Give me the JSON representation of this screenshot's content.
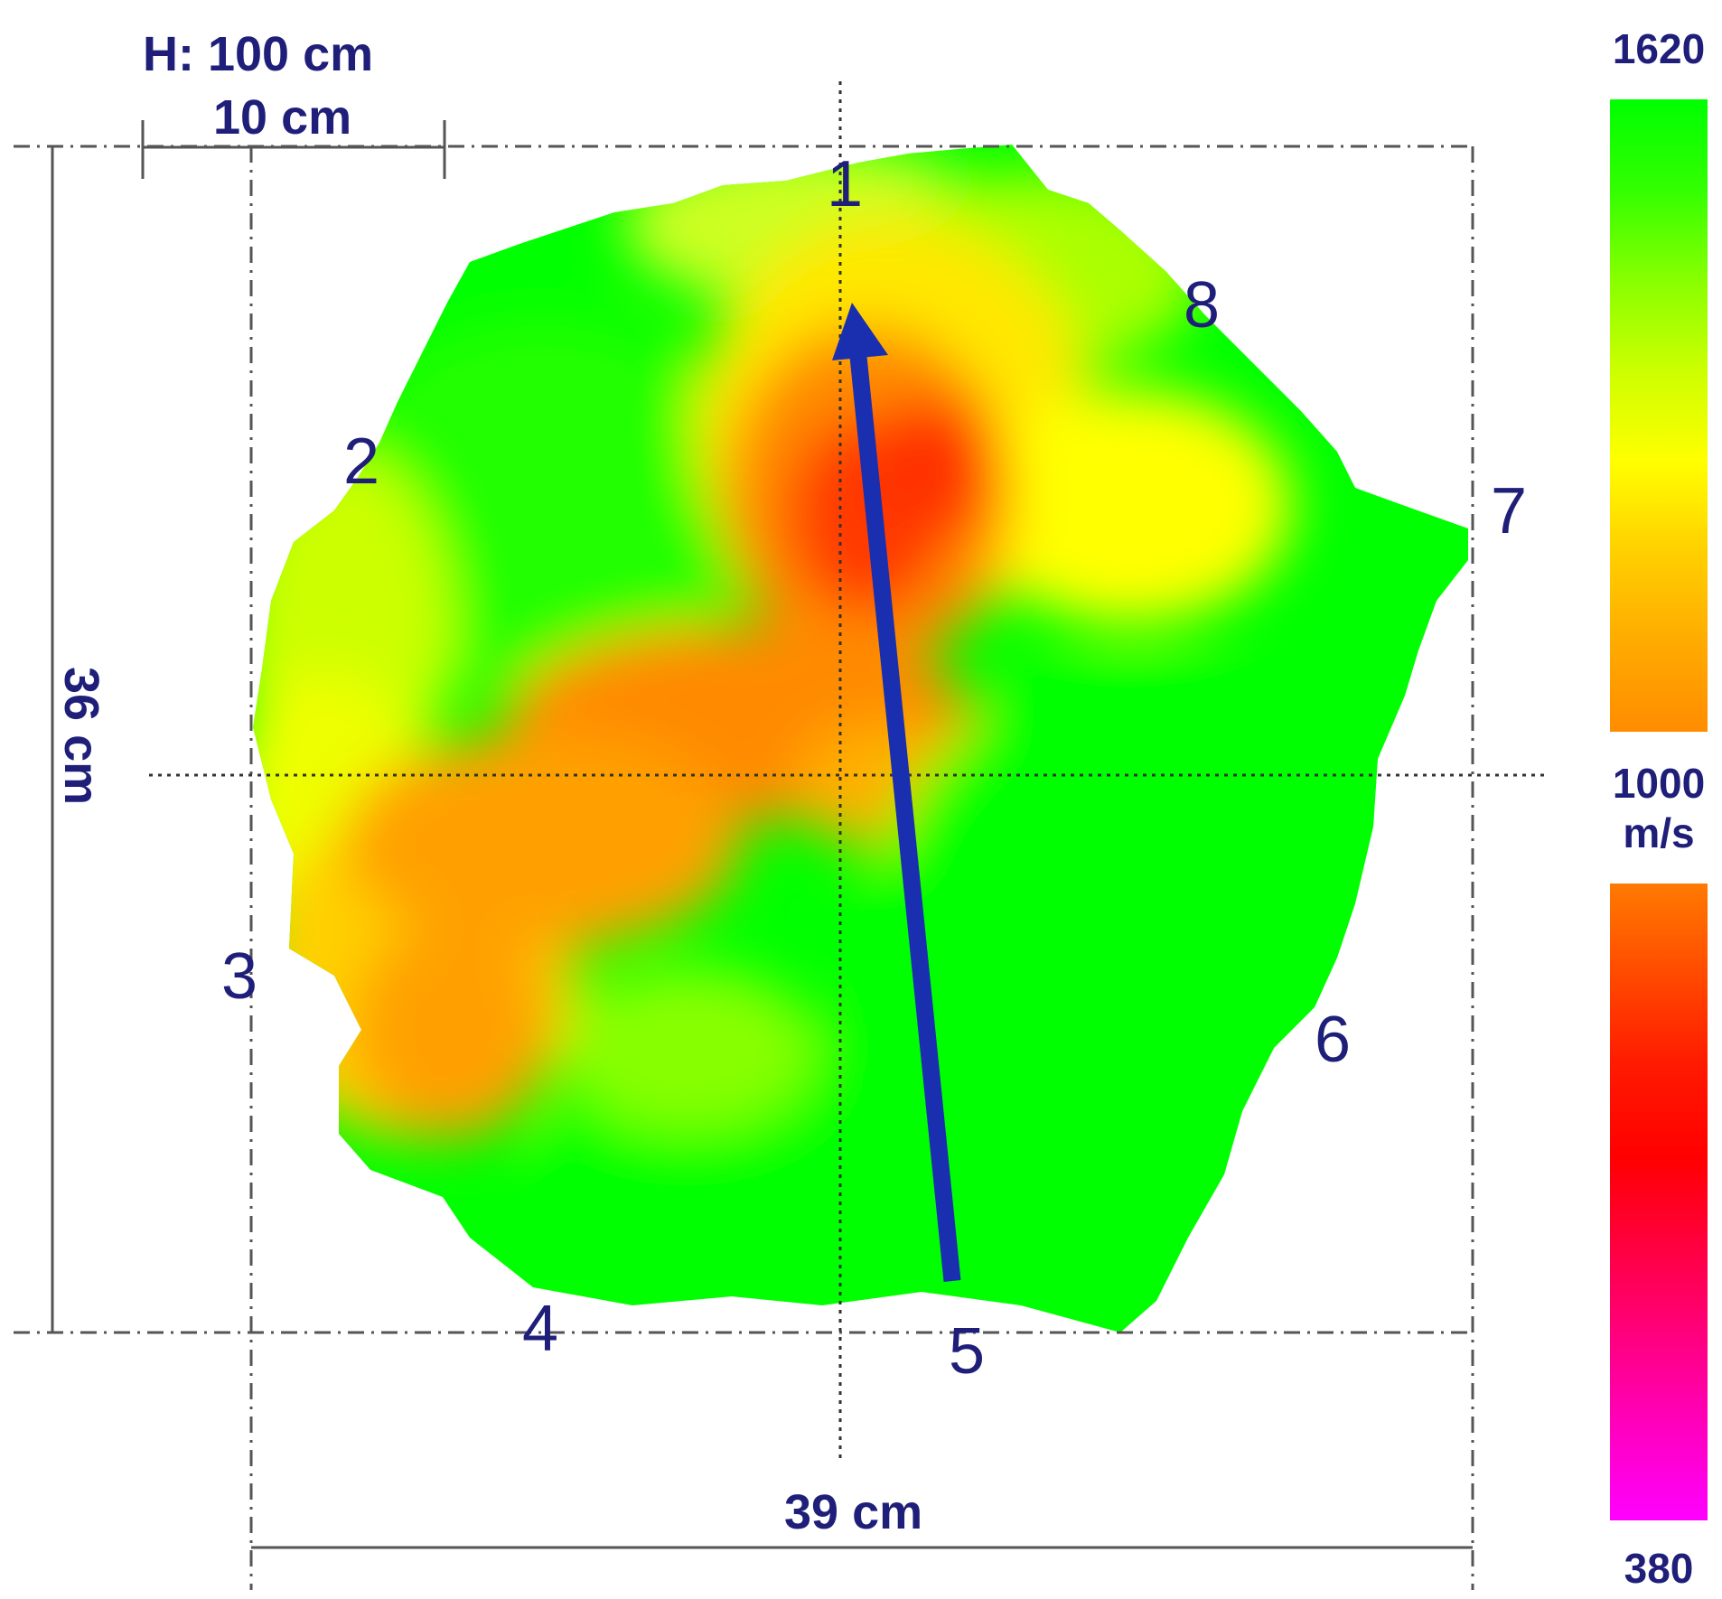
{
  "height_label": "H: 100 cm",
  "scale_bar_label": "10 cm",
  "width_label": "39 cm",
  "depth_label": "36 cm",
  "colorbar": {
    "max_label": "1620",
    "mid_label": "1000",
    "unit_label": "m/s",
    "min_label": "380",
    "max_value": 1620,
    "mid_value": 1000,
    "min_value": 380,
    "upper_stops": [
      "#00ff00",
      "#33ff00",
      "#88ff00",
      "#ccff00",
      "#ffff00",
      "#ffd000",
      "#ffab00",
      "#ff8c00"
    ],
    "lower_stops": [
      "#ff7a00",
      "#ff4a00",
      "#ff1a00",
      "#ff0000",
      "#ff0040",
      "#ff0080",
      "#ff00c0",
      "#ff00ff"
    ]
  },
  "sensors": [
    {
      "label": "1"
    },
    {
      "label": "2"
    },
    {
      "label": "3"
    },
    {
      "label": "4"
    },
    {
      "label": "5"
    },
    {
      "label": "6"
    },
    {
      "label": "7"
    },
    {
      "label": "8"
    }
  ],
  "colors": {
    "arrow": "#1a2fb0",
    "text": "#1f1f7a",
    "dimension_line": "#555555"
  }
}
